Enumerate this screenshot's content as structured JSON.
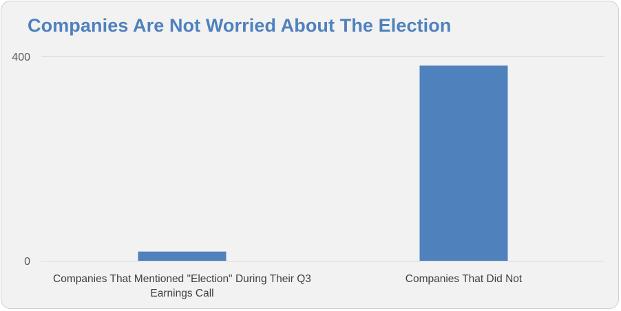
{
  "chart_data": {
    "type": "bar",
    "title": "Companies Are Not Worried About The Election",
    "xlabel": "",
    "ylabel": "",
    "categories": [
      "Companies That Mentioned \"Election\" During Their Q3 Earnings Call",
      "Companies That Did Not"
    ],
    "values": [
      18,
      382
    ],
    "ylim": [
      0,
      400
    ],
    "yticks": [
      "0",
      "400"
    ],
    "grid": true,
    "legend": "none"
  },
  "colors": {
    "bar": "#4f81bd",
    "title": "#4f81bd",
    "background": "#f2f2f2",
    "gridline": "#d9d9d9"
  }
}
